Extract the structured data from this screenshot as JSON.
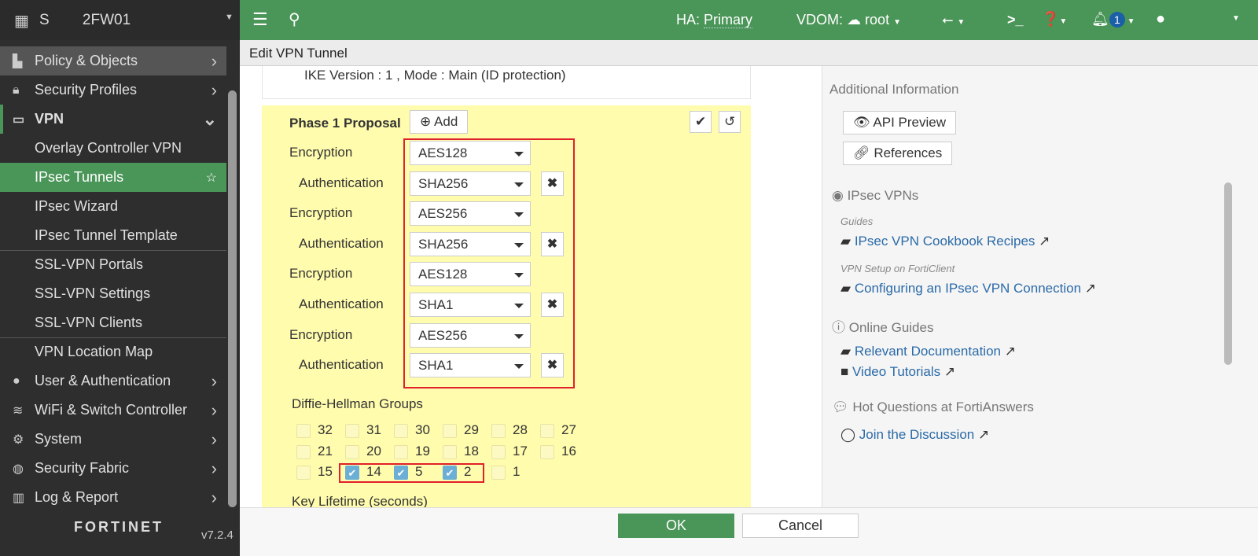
{
  "sidebar": {
    "device_name": "S        2FW01",
    "items": [
      {
        "label": "Policy & Objects",
        "icon": "policy-icon"
      },
      {
        "label": "Security Profiles",
        "icon": "lock-icon"
      },
      {
        "label": "VPN",
        "icon": "monitor-icon"
      },
      {
        "label": "Overlay Controller VPN"
      },
      {
        "label": "IPsec Tunnels"
      },
      {
        "label": "IPsec Wizard"
      },
      {
        "label": "IPsec Tunnel Template"
      },
      {
        "label": "SSL-VPN Portals"
      },
      {
        "label": "SSL-VPN Settings"
      },
      {
        "label": "SSL-VPN Clients"
      },
      {
        "label": "VPN Location Map"
      },
      {
        "label": "User & Authentication",
        "icon": "user-icon"
      },
      {
        "label": "WiFi & Switch Controller",
        "icon": "wifi-icon"
      },
      {
        "label": "System",
        "icon": "gear-icon"
      },
      {
        "label": "Security Fabric",
        "icon": "fabric-icon"
      },
      {
        "label": "Log & Report",
        "icon": "chart-icon"
      }
    ],
    "logo": "FORTINET",
    "version": "v7.2.4"
  },
  "topbar": {
    "ha_label": "HA:",
    "ha_value": "Primary",
    "vdom_label": "VDOM:",
    "vdom_value": "root",
    "notification_count": "1"
  },
  "title": "Edit VPN Tunnel",
  "form": {
    "ike_info": "IKE Version : 1 , Mode : Main (ID protection)",
    "phase1_label": "Phase 1 Proposal",
    "add_label": "Add",
    "proposals": [
      {
        "label": "Encryption",
        "value": "AES128"
      },
      {
        "label": "Authentication",
        "value": "SHA256"
      },
      {
        "label": "Encryption",
        "value": "AES256"
      },
      {
        "label": "Authentication",
        "value": "SHA256"
      },
      {
        "label": "Encryption",
        "value": "AES128"
      },
      {
        "label": "Authentication",
        "value": "SHA1"
      },
      {
        "label": "Encryption",
        "value": "AES256"
      },
      {
        "label": "Authentication",
        "value": "SHA1"
      }
    ],
    "dh_label": "Diffie-Hellman Groups",
    "dh_groups": [
      {
        "n": "32",
        "checked": false
      },
      {
        "n": "31",
        "checked": false
      },
      {
        "n": "30",
        "checked": false
      },
      {
        "n": "29",
        "checked": false
      },
      {
        "n": "28",
        "checked": false
      },
      {
        "n": "27",
        "checked": false
      },
      {
        "n": "21",
        "checked": false
      },
      {
        "n": "20",
        "checked": false
      },
      {
        "n": "19",
        "checked": false
      },
      {
        "n": "18",
        "checked": false
      },
      {
        "n": "17",
        "checked": false
      },
      {
        "n": "16",
        "checked": false
      },
      {
        "n": "15",
        "checked": false
      },
      {
        "n": "14",
        "checked": true
      },
      {
        "n": "5",
        "checked": true
      },
      {
        "n": "2",
        "checked": true
      },
      {
        "n": "1",
        "checked": false
      }
    ],
    "key_lifetime_label": "Key Lifetime (seconds)"
  },
  "info": {
    "heading": "Additional Information",
    "api_preview": "API Preview",
    "references": "References",
    "ipsec_vpns": "IPsec VPNs",
    "guides_caption": "Guides",
    "cookbook": "IPsec VPN Cookbook Recipes",
    "forticlient_caption": "VPN Setup on FortiClient",
    "configuring": "Configuring an IPsec VPN Connection",
    "online_guides": "Online Guides",
    "relevant_docs": "Relevant Documentation",
    "video_tutorials": "Video Tutorials",
    "hot_questions": "Hot Questions at FortiAnswers",
    "join": "Join the Discussion"
  },
  "footer": {
    "ok": "OK",
    "cancel": "Cancel"
  },
  "colors": {
    "accent": "#4a9558",
    "highlight_box": "#e0202a",
    "card": "#fffcad",
    "link": "#2a6aa8"
  }
}
